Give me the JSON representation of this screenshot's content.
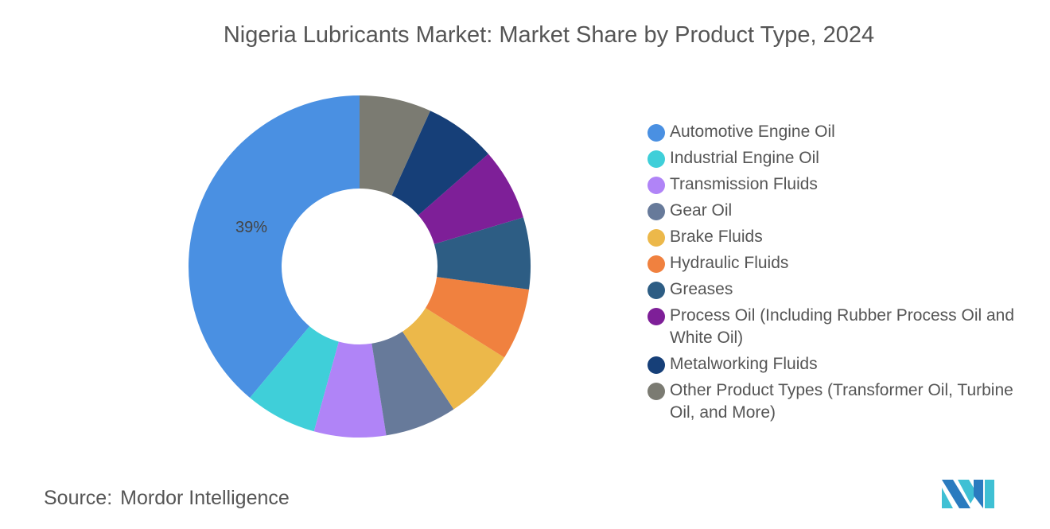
{
  "title": "Nigeria Lubricants Market: Market Share by Product Type, 2024",
  "source": {
    "label": "Source:",
    "value": "Mordor Intelligence"
  },
  "chart_data": {
    "type": "pie",
    "variant": "donut",
    "title": "Nigeria Lubricants Market: Market Share by Product Type, 2024",
    "legend_position": "right",
    "unit": "%",
    "slices": [
      {
        "name": "Automotive Engine Oil",
        "value": 39,
        "label": "39%",
        "color": "#4a90e2"
      },
      {
        "name": "Industrial Engine Oil",
        "value": 6.8,
        "color": "#3fcfd9"
      },
      {
        "name": "Transmission Fluids",
        "value": 6.8,
        "color": "#b084f7"
      },
      {
        "name": "Gear Oil",
        "value": 6.8,
        "color": "#677a9a"
      },
      {
        "name": "Brake Fluids",
        "value": 6.8,
        "color": "#ecb84a"
      },
      {
        "name": "Hydraulic Fluids",
        "value": 6.8,
        "color": "#f0813f"
      },
      {
        "name": "Greases",
        "value": 6.8,
        "color": "#2d5d84"
      },
      {
        "name": "Process Oil (Including Rubber Process Oil and White Oil)",
        "value": 6.8,
        "color": "#7e1f98"
      },
      {
        "name": "Metalworking Fluids",
        "value": 6.8,
        "color": "#163f78"
      },
      {
        "name": "Other Product Types (Transformer Oil, Turbine Oil, and More)",
        "value": 6.8,
        "color": "#7b7b72"
      }
    ]
  }
}
